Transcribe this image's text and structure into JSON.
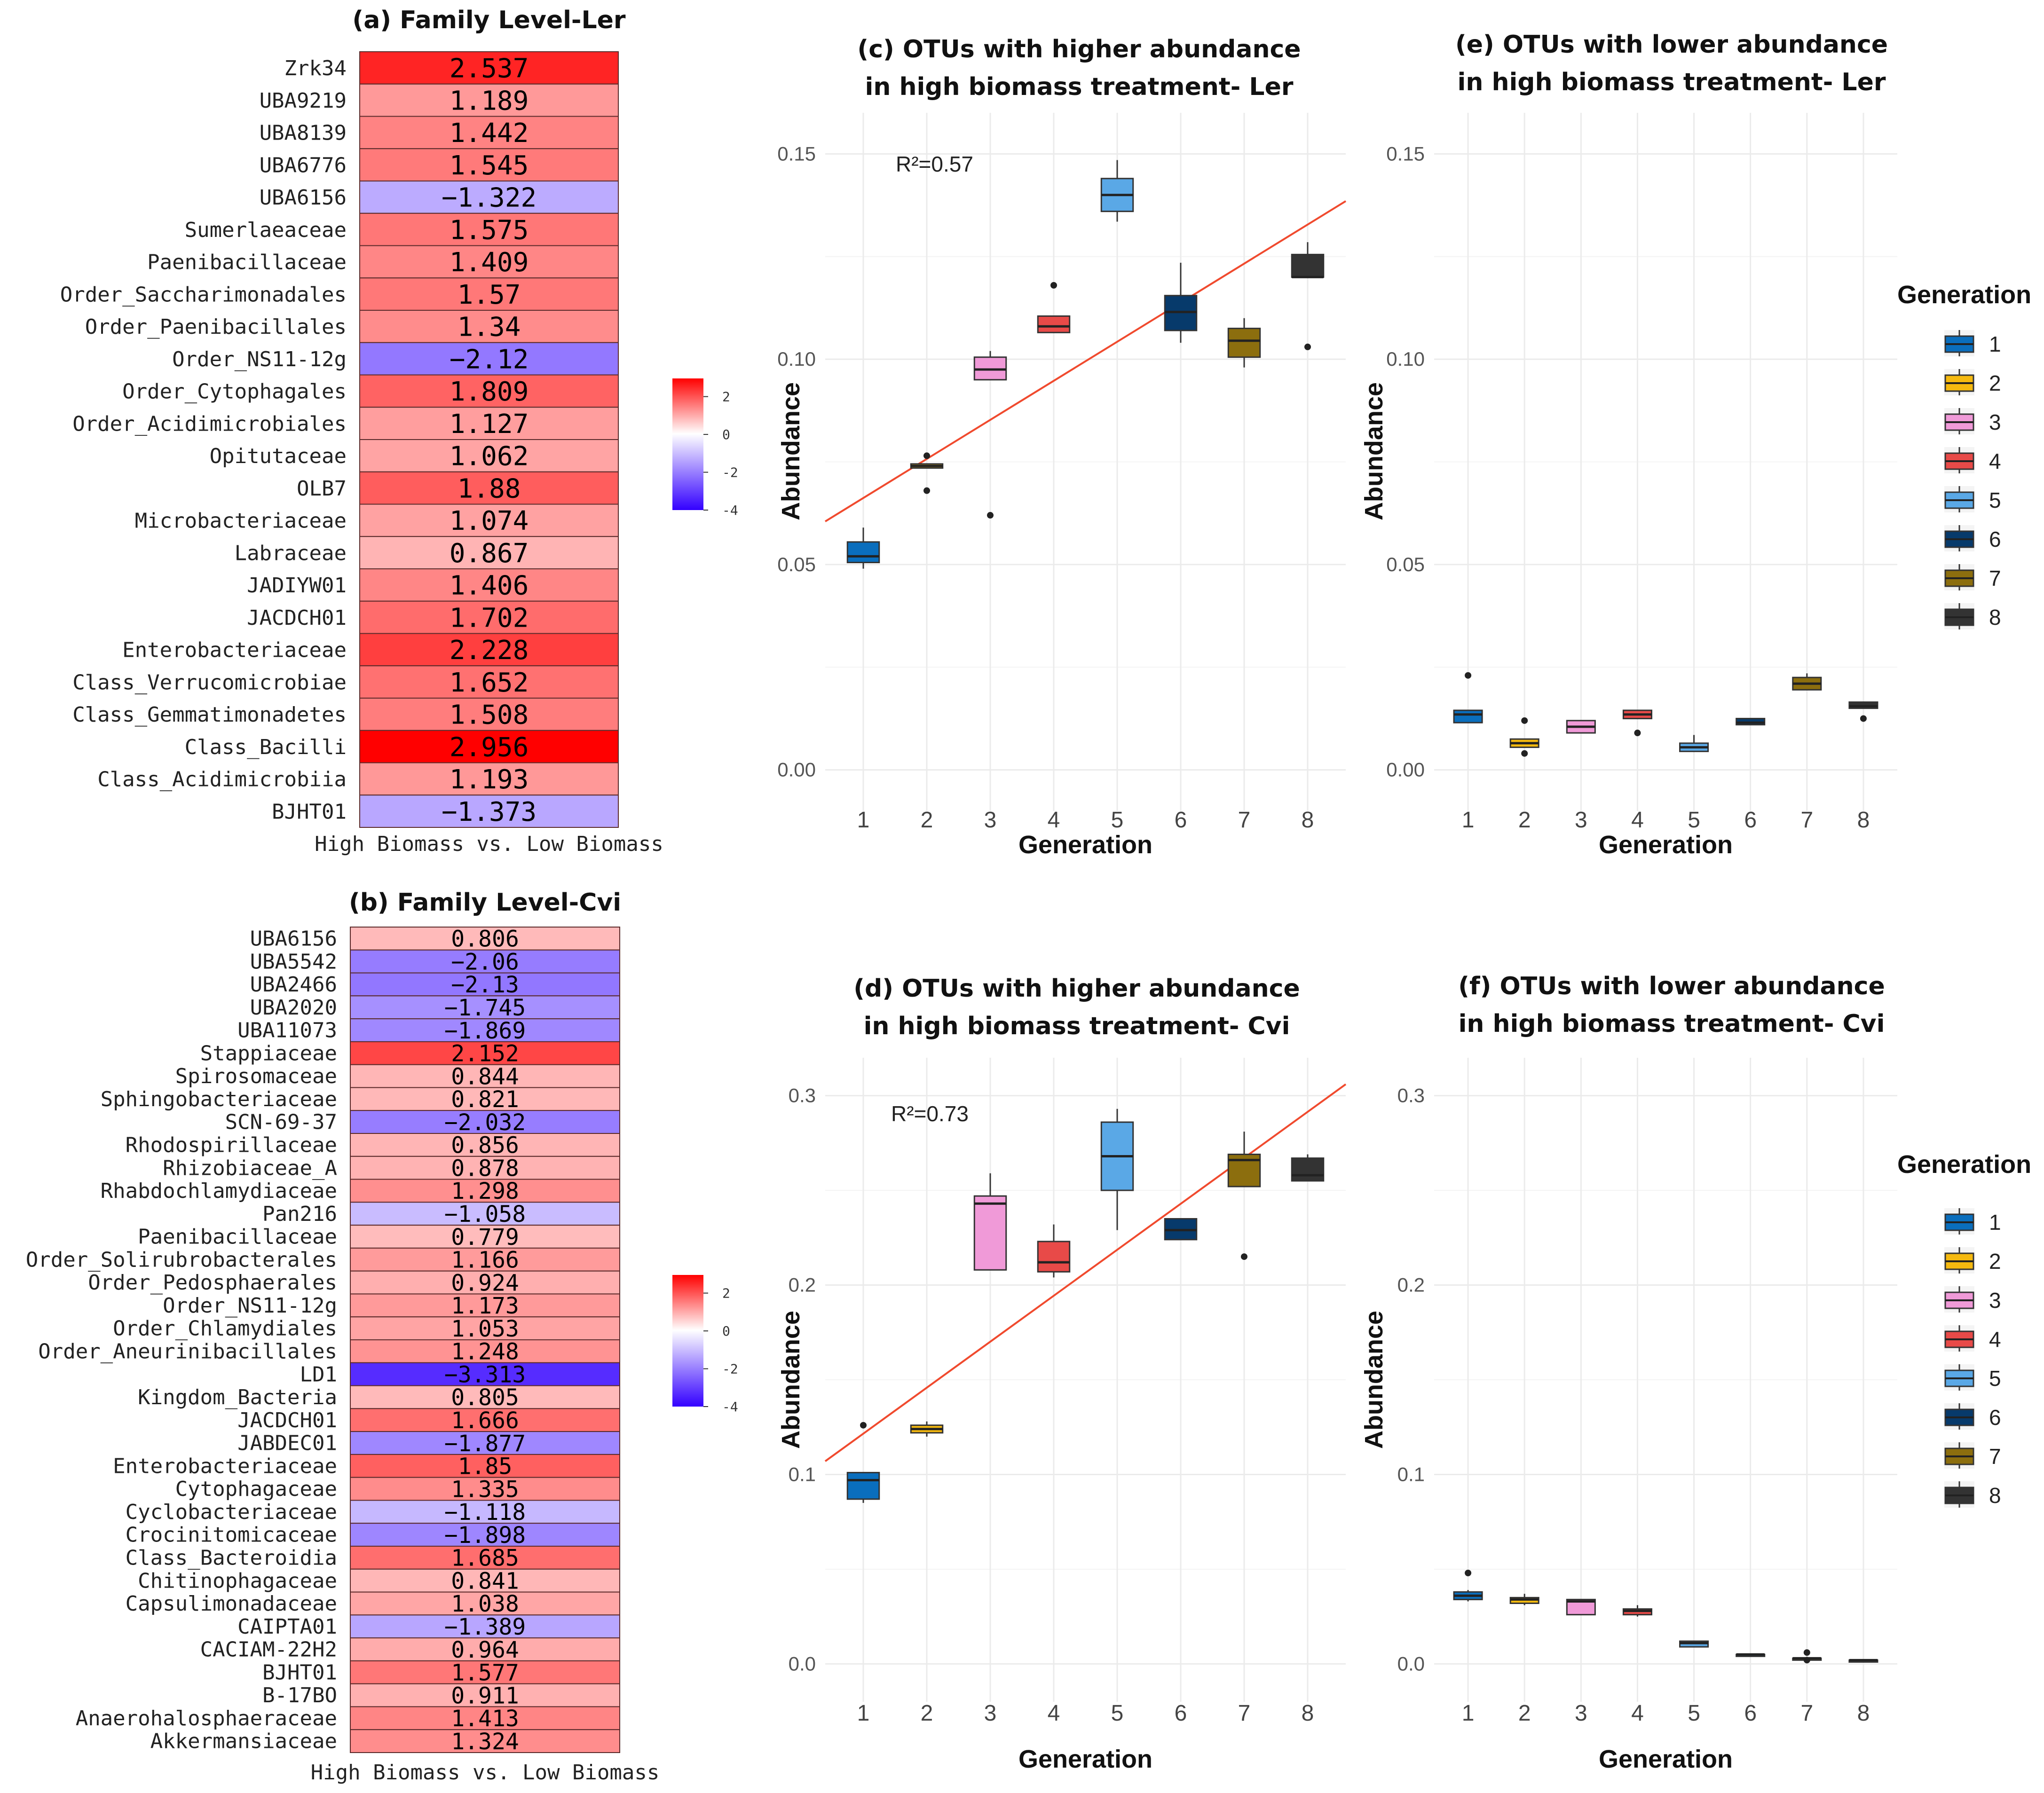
{
  "colors": {
    "positive": "#ff0000",
    "negative": "#3300ff",
    "mid": "#ffffff",
    "fit_line": "#f04a2e",
    "generations": [
      "#0a6ebd",
      "#f5b90f",
      "#f09ad8",
      "#e84a48",
      "#5aa8e6",
      "#073a6b",
      "#8c6e0e",
      "#333333"
    ]
  },
  "chart_data": [
    {
      "id": "a",
      "type": "heatmap",
      "title": "(a) Family Level-Ler",
      "xlabel": "High Biomass vs. Low Biomass",
      "colorbar_ticks": [
        "2",
        "0",
        "-2",
        "-4"
      ],
      "color_range": [
        -4,
        2.96
      ],
      "rows": [
        "Zrk34",
        "UBA9219",
        "UBA8139",
        "UBA6776",
        "UBA6156",
        "Sumerlaeaceae",
        "Paenibacillaceae",
        "Order_Saccharimonadales",
        "Order_Paenibacillales",
        "Order_NS11-12g",
        "Order_Cytophagales",
        "Order_Acidimicrobiales",
        "Opitutaceae",
        "OLB7",
        "Microbacteriaceae",
        "Labraceae",
        "JADIYW01",
        "JACDCH01",
        "Enterobacteriaceae",
        "Class_Verrucomicrobiae",
        "Class_Gemmatimonadetes",
        "Class_Bacilli",
        "Class_Acidimicrobiia",
        "BJHT01"
      ],
      "values": [
        2.537,
        1.189,
        1.442,
        1.545,
        -1.322,
        1.575,
        1.409,
        1.57,
        1.34,
        -2.12,
        1.809,
        1.127,
        1.062,
        1.88,
        1.074,
        0.867,
        1.406,
        1.702,
        2.228,
        1.652,
        1.508,
        2.956,
        1.193,
        -1.373
      ],
      "labels": [
        "2.537",
        "1.189",
        "1.442",
        "1.545",
        "−1.322",
        "1.575",
        "1.409",
        "1.57",
        "1.34",
        "−2.12",
        "1.809",
        "1.127",
        "1.062",
        "1.88",
        "1.074",
        "0.867",
        "1.406",
        "1.702",
        "2.228",
        "1.652",
        "1.508",
        "2.956",
        "1.193",
        "−1.373"
      ]
    },
    {
      "id": "b",
      "type": "heatmap",
      "title": "(b) Family Level-Cvi",
      "xlabel": "High Biomass vs. Low Biomass",
      "colorbar_ticks": [
        "2",
        "0",
        "-2",
        "-4"
      ],
      "color_range": [
        -4,
        2.96
      ],
      "rows": [
        "UBA6156",
        "UBA5542",
        "UBA2466",
        "UBA2020",
        "UBA11073",
        "Stappiaceae",
        "Spirosomaceae",
        "Sphingobacteriaceae",
        "SCN-69-37",
        "Rhodospirillaceae",
        "Rhizobiaceae_A",
        "Rhabdochlamydiaceae",
        "Pan216",
        "Paenibacillaceae",
        "Order_Solirubrobacterales",
        "Order_Pedosphaerales",
        "Order_NS11-12g",
        "Order_Chlamydiales",
        "Order_Aneurinibacillales",
        "LD1",
        "Kingdom_Bacteria",
        "JACDCH01",
        "JABDEC01",
        "Enterobacteriaceae",
        "Cytophagaceae",
        "Cyclobacteriaceae",
        "Crocinitomicaceae",
        "Class_Bacteroidia",
        "Chitinophagaceae",
        "Capsulimonadaceae",
        "CAIPTA01",
        "CACIAM-22H2",
        "BJHT01",
        "B-17BO",
        "Anaerohalosphaeraceae",
        "Akkermansiaceae"
      ],
      "values": [
        0.806,
        -2.06,
        -2.13,
        -1.745,
        -1.869,
        2.152,
        0.844,
        0.821,
        -2.032,
        0.856,
        0.878,
        1.298,
        -1.058,
        0.779,
        1.166,
        0.924,
        1.173,
        1.053,
        1.248,
        -3.313,
        0.805,
        1.666,
        -1.877,
        1.85,
        1.335,
        -1.118,
        -1.898,
        1.685,
        0.841,
        1.038,
        -1.389,
        0.964,
        1.577,
        0.911,
        1.413,
        1.324
      ],
      "labels": [
        "0.806",
        "−2.06",
        "−2.13",
        "−1.745",
        "−1.869",
        "2.152",
        "0.844",
        "0.821",
        "−2.032",
        "0.856",
        "0.878",
        "1.298",
        "−1.058",
        "0.779",
        "1.166",
        "0.924",
        "1.173",
        "1.053",
        "1.248",
        "−3.313",
        "0.805",
        "1.666",
        "−1.877",
        "1.85",
        "1.335",
        "−1.118",
        "−1.898",
        "1.685",
        "0.841",
        "1.038",
        "−1.389",
        "0.964",
        "1.577",
        "0.911",
        "1.413",
        "1.324"
      ]
    },
    {
      "id": "c",
      "type": "box",
      "title_lines": [
        "(c) OTUs with higher abundance",
        "in high biomass treatment- Ler"
      ],
      "xlabel": "Generation",
      "ylabel": "Abundance",
      "categories": [
        "1",
        "2",
        "3",
        "4",
        "5",
        "6",
        "7",
        "8"
      ],
      "ylim": [
        -0.01,
        0.16
      ],
      "yticks": [
        0.0,
        0.05,
        0.1,
        0.15
      ],
      "ytick_labels": [
        "0.00",
        "0.05",
        "0.10",
        "0.15"
      ],
      "annotation": "R²=0.57",
      "fit_line": [
        0.0605,
        0.1385
      ],
      "boxes": [
        {
          "lo": 0.049,
          "q1": 0.0505,
          "med": 0.052,
          "q3": 0.0555,
          "hi": 0.059,
          "out": []
        },
        {
          "lo": 0.0735,
          "q1": 0.0735,
          "med": 0.074,
          "q3": 0.0745,
          "hi": 0.0745,
          "out": [
            0.0765,
            0.068
          ]
        },
        {
          "lo": 0.095,
          "q1": 0.095,
          "med": 0.0975,
          "q3": 0.1005,
          "hi": 0.102,
          "out": [
            0.062
          ]
        },
        {
          "lo": 0.1065,
          "q1": 0.1065,
          "med": 0.108,
          "q3": 0.1105,
          "hi": 0.1105,
          "out": [
            0.118
          ]
        },
        {
          "lo": 0.1335,
          "q1": 0.136,
          "med": 0.14,
          "q3": 0.144,
          "hi": 0.1485,
          "out": []
        },
        {
          "lo": 0.104,
          "q1": 0.107,
          "med": 0.1115,
          "q3": 0.1155,
          "hi": 0.1235,
          "out": []
        },
        {
          "lo": 0.098,
          "q1": 0.1005,
          "med": 0.1045,
          "q3": 0.1075,
          "hi": 0.11,
          "out": []
        },
        {
          "lo": 0.12,
          "q1": 0.12,
          "med": 0.12,
          "q3": 0.1255,
          "hi": 0.1285,
          "out": [
            0.103
          ]
        }
      ]
    },
    {
      "id": "d",
      "type": "box",
      "title_lines": [
        "(d) OTUs with higher abundance",
        "in high biomass treatment- Cvi"
      ],
      "xlabel": "Generation",
      "ylabel": "Abundance",
      "categories": [
        "1",
        "2",
        "3",
        "4",
        "5",
        "6",
        "7",
        "8"
      ],
      "ylim": [
        -0.02,
        0.32
      ],
      "yticks": [
        0.0,
        0.1,
        0.2,
        0.3
      ],
      "ytick_labels": [
        "0.0",
        "0.1",
        "0.2",
        "0.3"
      ],
      "annotation": "R²=0.73",
      "fit_line": [
        0.107,
        0.306
      ],
      "boxes": [
        {
          "lo": 0.085,
          "q1": 0.087,
          "med": 0.097,
          "q3": 0.101,
          "hi": 0.101,
          "out": [
            0.126
          ]
        },
        {
          "lo": 0.12,
          "q1": 0.122,
          "med": 0.124,
          "q3": 0.126,
          "hi": 0.128,
          "out": []
        },
        {
          "lo": 0.208,
          "q1": 0.208,
          "med": 0.243,
          "q3": 0.247,
          "hi": 0.259,
          "out": []
        },
        {
          "lo": 0.204,
          "q1": 0.207,
          "med": 0.212,
          "q3": 0.223,
          "hi": 0.232,
          "out": []
        },
        {
          "lo": 0.229,
          "q1": 0.25,
          "med": 0.268,
          "q3": 0.286,
          "hi": 0.293,
          "out": []
        },
        {
          "lo": 0.224,
          "q1": 0.224,
          "med": 0.229,
          "q3": 0.235,
          "hi": 0.235,
          "out": []
        },
        {
          "lo": 0.252,
          "q1": 0.252,
          "med": 0.266,
          "q3": 0.269,
          "hi": 0.281,
          "out": [
            0.215
          ]
        },
        {
          "lo": 0.255,
          "q1": 0.255,
          "med": 0.258,
          "q3": 0.267,
          "hi": 0.269,
          "out": []
        }
      ]
    },
    {
      "id": "e",
      "type": "box",
      "title_lines": [
        "(e) OTUs with lower abundance",
        "in high biomass treatment- Ler"
      ],
      "xlabel": "Generation",
      "ylabel": "Abundance",
      "categories": [
        "1",
        "2",
        "3",
        "4",
        "5",
        "6",
        "7",
        "8"
      ],
      "ylim": [
        -0.01,
        0.16
      ],
      "yticks": [
        0.0,
        0.05,
        0.1,
        0.15
      ],
      "ytick_labels": [
        "0.00",
        "0.05",
        "0.10",
        "0.15"
      ],
      "annotation": "",
      "boxes": [
        {
          "lo": 0.0115,
          "q1": 0.0115,
          "med": 0.0135,
          "q3": 0.0145,
          "hi": 0.0145,
          "out": [
            0.023
          ]
        },
        {
          "lo": 0.0055,
          "q1": 0.0055,
          "med": 0.0065,
          "q3": 0.0075,
          "hi": 0.0075,
          "out": [
            0.012,
            0.004
          ]
        },
        {
          "lo": 0.009,
          "q1": 0.009,
          "med": 0.0105,
          "q3": 0.012,
          "hi": 0.012,
          "out": []
        },
        {
          "lo": 0.0125,
          "q1": 0.0125,
          "med": 0.0135,
          "q3": 0.0145,
          "hi": 0.0145,
          "out": [
            0.009
          ]
        },
        {
          "lo": 0.0045,
          "q1": 0.0045,
          "med": 0.0055,
          "q3": 0.0065,
          "hi": 0.0085,
          "out": []
        },
        {
          "lo": 0.011,
          "q1": 0.011,
          "med": 0.0115,
          "q3": 0.0125,
          "hi": 0.0125,
          "out": []
        },
        {
          "lo": 0.0195,
          "q1": 0.0195,
          "med": 0.021,
          "q3": 0.0225,
          "hi": 0.0235,
          "out": []
        },
        {
          "lo": 0.015,
          "q1": 0.015,
          "med": 0.0155,
          "q3": 0.0165,
          "hi": 0.0165,
          "out": [
            0.0125
          ]
        }
      ]
    },
    {
      "id": "f",
      "type": "box",
      "title_lines": [
        "(f) OTUs with lower abundance",
        "in high biomass treatment- Cvi"
      ],
      "xlabel": "Generation",
      "ylabel": "Abundance",
      "categories": [
        "1",
        "2",
        "3",
        "4",
        "5",
        "6",
        "7",
        "8"
      ],
      "ylim": [
        -0.02,
        0.32
      ],
      "yticks": [
        0.0,
        0.1,
        0.2,
        0.3
      ],
      "ytick_labels": [
        "0.0",
        "0.1",
        "0.2",
        "0.3"
      ],
      "annotation": "",
      "boxes": [
        {
          "lo": 0.033,
          "q1": 0.034,
          "med": 0.036,
          "q3": 0.038,
          "hi": 0.039,
          "out": [
            0.048
          ]
        },
        {
          "lo": 0.031,
          "q1": 0.032,
          "med": 0.034,
          "q3": 0.035,
          "hi": 0.037,
          "out": []
        },
        {
          "lo": 0.026,
          "q1": 0.026,
          "med": 0.033,
          "q3": 0.034,
          "hi": 0.034,
          "out": []
        },
        {
          "lo": 0.025,
          "q1": 0.026,
          "med": 0.028,
          "q3": 0.029,
          "hi": 0.031,
          "out": []
        },
        {
          "lo": 0.009,
          "q1": 0.009,
          "med": 0.011,
          "q3": 0.012,
          "hi": 0.012,
          "out": []
        },
        {
          "lo": 0.004,
          "q1": 0.004,
          "med": 0.005,
          "q3": 0.005,
          "hi": 0.005,
          "out": []
        },
        {
          "lo": 0.002,
          "q1": 0.002,
          "med": 0.003,
          "q3": 0.003,
          "hi": 0.003,
          "out": [
            0.006,
            0.002
          ]
        },
        {
          "lo": 0.001,
          "q1": 0.001,
          "med": 0.002,
          "q3": 0.002,
          "hi": 0.002,
          "out": []
        }
      ]
    }
  ],
  "legend": {
    "title": "Generation",
    "entries": [
      "1",
      "2",
      "3",
      "4",
      "5",
      "6",
      "7",
      "8"
    ]
  }
}
